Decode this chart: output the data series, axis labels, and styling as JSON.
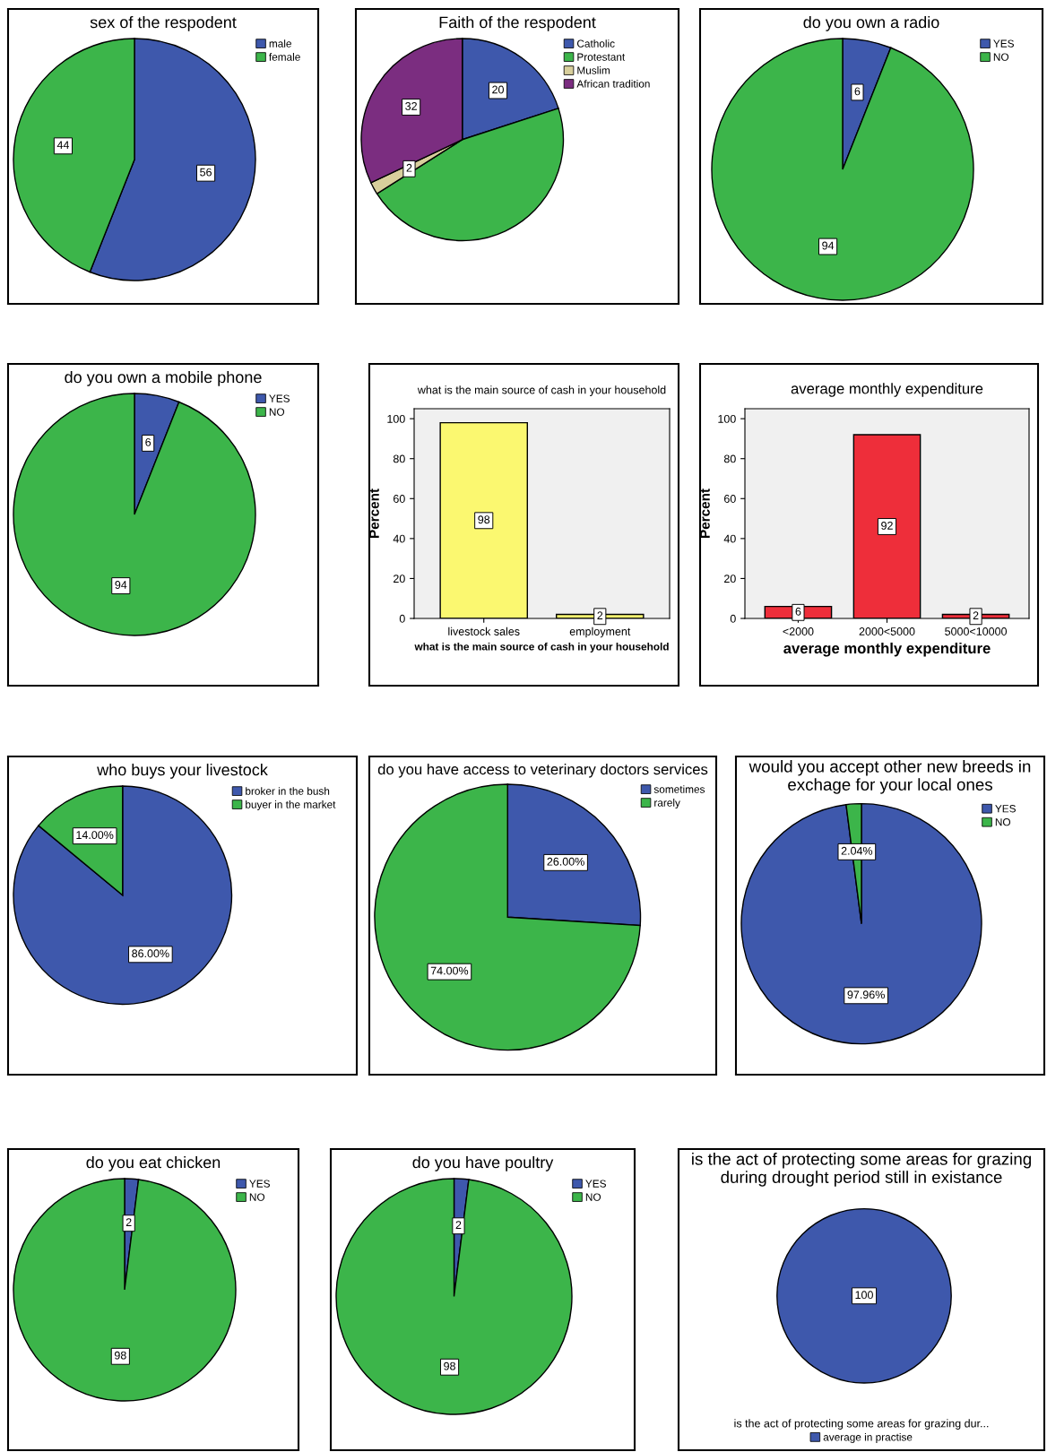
{
  "chart_data": [
    {
      "type": "pie",
      "title": "sex of the respodent",
      "categories": [
        "male",
        "female"
      ],
      "values": [
        56,
        44
      ],
      "colors": [
        "#3e58ac",
        "#3cb54a"
      ],
      "value_labels": [
        "56",
        "44"
      ],
      "legend": "right"
    },
    {
      "type": "pie",
      "title": "Faith of the respodent",
      "categories": [
        "Catholic",
        "Protestant",
        "Muslim",
        "African tradition"
      ],
      "values": [
        20,
        46,
        2,
        32
      ],
      "colors": [
        "#3e58ac",
        "#3cb54a",
        "#d8cf9c",
        "#7b2d80"
      ],
      "value_labels": [
        "20",
        null,
        "2",
        "32"
      ],
      "legend": "right"
    },
    {
      "type": "pie",
      "title": "do you own a radio",
      "categories": [
        "YES",
        "NO"
      ],
      "values": [
        6,
        94
      ],
      "colors": [
        "#3e58ac",
        "#3cb54a"
      ],
      "value_labels": [
        "6",
        "94"
      ],
      "legend": "right"
    },
    {
      "type": "pie",
      "title": "do you own a mobile phone",
      "categories": [
        "YES",
        "NO"
      ],
      "values": [
        6,
        94
      ],
      "colors": [
        "#3e58ac",
        "#3cb54a"
      ],
      "value_labels": [
        "6",
        "94"
      ],
      "legend": "right"
    },
    {
      "type": "bar",
      "title": "what is the main source of cash in your household",
      "xlabel": "what is the main source of cash in your household",
      "ylabel": "Percent",
      "categories": [
        "livestock sales",
        "employment"
      ],
      "values": [
        98,
        2
      ],
      "colors": [
        "#fbf870",
        "#fbf870"
      ],
      "ylim": [
        0,
        105
      ],
      "yticks": [
        0,
        20,
        40,
        60,
        80,
        100
      ],
      "data_labels": true
    },
    {
      "type": "bar",
      "title": "average monthly expenditure",
      "xlabel": "average monthly expenditure",
      "ylabel": "Percent",
      "categories": [
        "<2000",
        "2000<5000",
        "5000<10000"
      ],
      "values": [
        6,
        92,
        2
      ],
      "colors": [
        "#ee2e3a",
        "#ee2e3a",
        "#ee2e3a"
      ],
      "ylim": [
        0,
        105
      ],
      "yticks": [
        0,
        20,
        40,
        60,
        80,
        100
      ],
      "data_labels": true
    },
    {
      "type": "pie",
      "title": "who buys your livestock",
      "categories": [
        "broker in the bush",
        "buyer in the market"
      ],
      "values": [
        86,
        14
      ],
      "colors": [
        "#3e58ac",
        "#3cb54a"
      ],
      "value_labels": [
        "86.00%",
        "14.00%"
      ],
      "legend": "right"
    },
    {
      "type": "pie",
      "title": "do you have access to veterinary doctors services",
      "categories": [
        "sometimes",
        "rarely"
      ],
      "values": [
        26,
        74
      ],
      "colors": [
        "#3e58ac",
        "#3cb54a"
      ],
      "value_labels": [
        "26.00%",
        "74.00%"
      ],
      "legend": "right"
    },
    {
      "type": "pie",
      "title": "would you accept other new breeds in exchage for your local ones",
      "categories": [
        "YES",
        "NO"
      ],
      "values": [
        97.96,
        2.04
      ],
      "colors": [
        "#3e58ac",
        "#3cb54a"
      ],
      "value_labels": [
        "97.96%",
        "2.04%"
      ],
      "legend": "right"
    },
    {
      "type": "pie",
      "title": "do you eat chicken",
      "categories": [
        "YES",
        "NO"
      ],
      "values": [
        2,
        98
      ],
      "colors": [
        "#3e58ac",
        "#3cb54a"
      ],
      "value_labels": [
        "2",
        "98"
      ],
      "legend": "right"
    },
    {
      "type": "pie",
      "title": "do you have poultry",
      "categories": [
        "YES",
        "NO"
      ],
      "values": [
        2,
        98
      ],
      "colors": [
        "#3e58ac",
        "#3cb54a"
      ],
      "value_labels": [
        "2",
        "98"
      ],
      "legend": "right"
    },
    {
      "type": "pie",
      "title": "is the act of protecting some areas for grazing during drought period still in existance",
      "legend_title": "is the act of protecting some areas for grazing dur...",
      "categories": [
        "average in practise"
      ],
      "values": [
        100
      ],
      "colors": [
        "#3e58ac"
      ],
      "value_labels": [
        "100"
      ],
      "legend": "bottom"
    }
  ]
}
